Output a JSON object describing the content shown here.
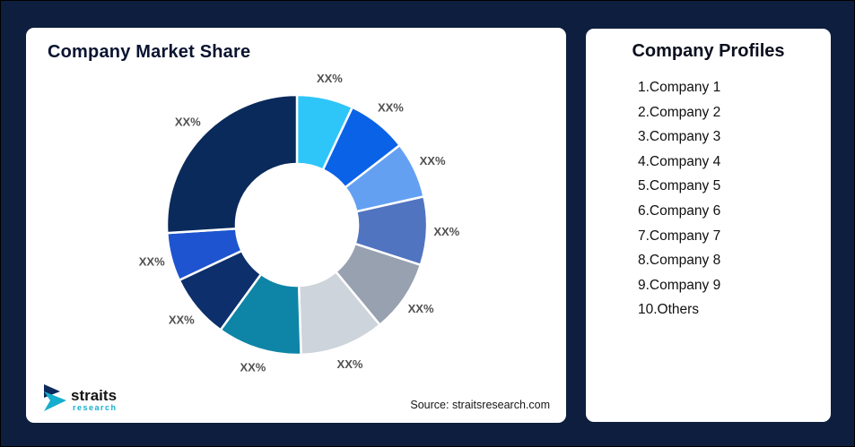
{
  "page": {
    "background": "#0E1E3E"
  },
  "market_share_card": {
    "title": "Company Market Share",
    "source_note": "Source: straitsresearch.com",
    "logo": {
      "brand": "straits",
      "brand_sub": "research",
      "accent_color": "#16AECE",
      "dark_color": "#0C2B5B"
    }
  },
  "profiles_card": {
    "title": "Company Profiles",
    "items": [
      "1.Company 1",
      "2.Company 2",
      "3.Company 3",
      "4.Company 4",
      "5.Company 5",
      "6.Company 6",
      "7.Company 7",
      "8.Company 8",
      "9.Company 9",
      "10.Others"
    ]
  },
  "chart_data": {
    "type": "pie",
    "variant": "donut",
    "title": "Company Market Share",
    "legend": "none",
    "inner_radius_ratio": 0.47,
    "start_angle_deg": 0,
    "direction": "clockwise",
    "value_note": "values are pixel-estimated slice percentages; on-chart labels all read XX%",
    "segments": [
      {
        "label": "XX%",
        "value": 7,
        "color": "#2EC5F9"
      },
      {
        "label": "XX%",
        "value": 7.5,
        "color": "#0A63E6"
      },
      {
        "label": "XX%",
        "value": 7,
        "color": "#63A0F2"
      },
      {
        "label": "XX%",
        "value": 8.5,
        "color": "#5174C0"
      },
      {
        "label": "XX%",
        "value": 9,
        "color": "#98A1AF"
      },
      {
        "label": "XX%",
        "value": 10.5,
        "color": "#CED4DB"
      },
      {
        "label": "XX%",
        "value": 10.5,
        "color": "#0E85A6"
      },
      {
        "label": "XX%",
        "value": 8,
        "color": "#0D2F6B"
      },
      {
        "label": "XX%",
        "value": 6,
        "color": "#1E54CF"
      },
      {
        "label": "XX%",
        "value": 26,
        "color": "#0A2A5C"
      }
    ],
    "source": "Source: straitsresearch.com"
  }
}
